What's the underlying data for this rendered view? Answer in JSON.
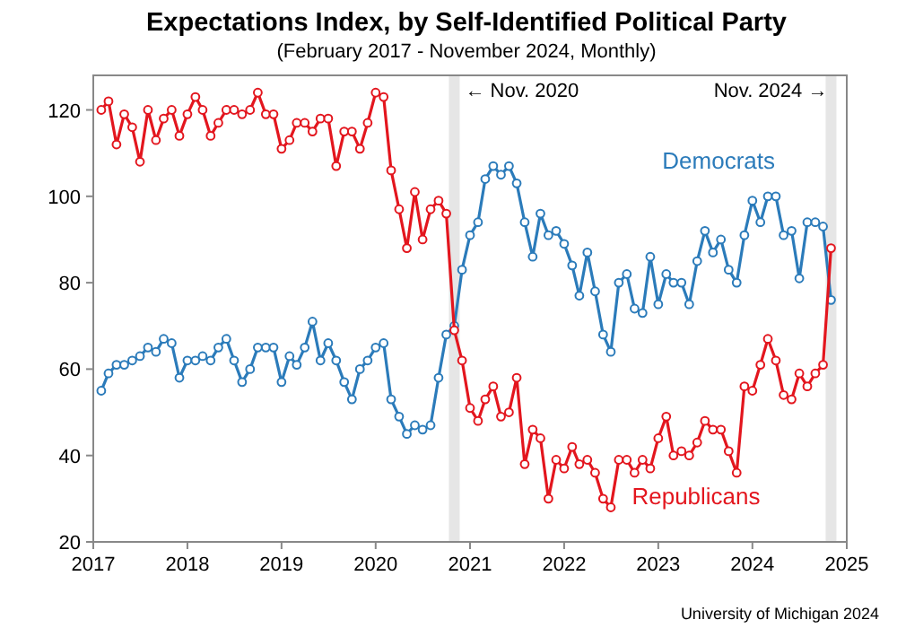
{
  "chart_data": {
    "type": "line",
    "title": "Expectations Index, by Self-Identified Political Party",
    "subtitle": "(February 2017 - November 2024, Monthly)",
    "annotations": [
      "University of Michigan 2024"
    ],
    "xlim": [
      "2017-01",
      "2025-01"
    ],
    "xticks": [
      {
        "value": "2017-01",
        "label": "2017"
      },
      {
        "value": "2018-01",
        "label": "2018"
      },
      {
        "value": "2019-01",
        "label": "2019"
      },
      {
        "value": "2020-01",
        "label": "2020"
      },
      {
        "value": "2021-01",
        "label": "2021"
      },
      {
        "value": "2022-01",
        "label": "2022"
      },
      {
        "value": "2023-01",
        "label": "2023"
      },
      {
        "value": "2024-01",
        "label": "2024"
      },
      {
        "value": "2025-01",
        "label": "2025"
      }
    ],
    "ylim": [
      20,
      128
    ],
    "yticks": [
      20,
      40,
      60,
      80,
      100,
      120
    ],
    "grid": false,
    "legend": false,
    "marker": "circle",
    "line_style": "solid",
    "x": [
      "2017-02",
      "2017-03",
      "2017-04",
      "2017-05",
      "2017-06",
      "2017-07",
      "2017-08",
      "2017-09",
      "2017-10",
      "2017-11",
      "2017-12",
      "2018-01",
      "2018-02",
      "2018-03",
      "2018-04",
      "2018-05",
      "2018-06",
      "2018-07",
      "2018-08",
      "2018-09",
      "2018-10",
      "2018-11",
      "2018-12",
      "2019-01",
      "2019-02",
      "2019-03",
      "2019-04",
      "2019-05",
      "2019-06",
      "2019-07",
      "2019-08",
      "2019-09",
      "2019-10",
      "2019-11",
      "2019-12",
      "2020-01",
      "2020-02",
      "2020-03",
      "2020-04",
      "2020-05",
      "2020-06",
      "2020-07",
      "2020-08",
      "2020-09",
      "2020-10",
      "2020-11",
      "2020-12",
      "2021-01",
      "2021-02",
      "2021-03",
      "2021-04",
      "2021-05",
      "2021-06",
      "2021-07",
      "2021-08",
      "2021-09",
      "2021-10",
      "2021-11",
      "2021-12",
      "2022-01",
      "2022-02",
      "2022-03",
      "2022-04",
      "2022-05",
      "2022-06",
      "2022-07",
      "2022-08",
      "2022-09",
      "2022-10",
      "2022-11",
      "2022-12",
      "2023-01",
      "2023-02",
      "2023-03",
      "2023-04",
      "2023-05",
      "2023-06",
      "2023-07",
      "2023-08",
      "2023-09",
      "2023-10",
      "2023-11",
      "2023-12",
      "2024-01",
      "2024-02",
      "2024-03",
      "2024-04",
      "2024-05",
      "2024-06",
      "2024-07",
      "2024-08",
      "2024-09",
      "2024-10",
      "2024-11"
    ],
    "ref_lines": [
      {
        "axis": "x",
        "value": "2020-11",
        "label": "← Nov. 2020",
        "color": "#e6e6e6"
      },
      {
        "axis": "x",
        "value": "2024-11",
        "label": "Nov. 2024 →",
        "color": "#e6e6e6"
      }
    ],
    "series": [
      {
        "name": "Democrats",
        "color": "#2b7bba",
        "values": [
          55,
          59,
          61,
          61,
          62,
          63,
          65,
          64,
          67,
          66,
          58,
          62,
          62,
          63,
          62,
          65,
          67,
          62,
          57,
          60,
          65,
          65,
          65,
          57,
          63,
          61,
          65,
          71,
          62,
          66,
          62,
          57,
          53,
          60,
          62,
          65,
          66,
          53,
          49,
          45,
          47,
          46,
          47,
          58,
          68,
          70,
          83,
          91,
          94,
          104,
          107,
          105,
          107,
          103,
          94,
          86,
          96,
          91,
          92,
          89,
          84,
          77,
          87,
          78,
          68,
          64,
          80,
          82,
          74,
          73,
          86,
          75,
          82,
          80,
          80,
          75,
          85,
          92,
          87,
          90,
          83,
          80,
          91,
          99,
          94,
          100,
          100,
          91,
          92,
          81,
          94,
          94,
          93,
          76
        ]
      },
      {
        "name": "Republicans",
        "color": "#e3161e",
        "values": [
          120,
          122,
          112,
          119,
          116,
          108,
          120,
          113,
          118,
          120,
          114,
          119,
          123,
          120,
          114,
          117,
          120,
          120,
          119,
          120,
          124,
          119,
          119,
          111,
          113,
          117,
          117,
          115,
          118,
          118,
          107,
          115,
          115,
          111,
          117,
          124,
          123,
          106,
          97,
          88,
          101,
          90,
          97,
          99,
          96,
          69,
          62,
          51,
          48,
          53,
          56,
          49,
          50,
          58,
          38,
          46,
          44,
          30,
          39,
          37,
          42,
          38,
          39,
          36,
          30,
          28,
          39,
          39,
          36,
          39,
          37,
          44,
          49,
          40,
          41,
          40,
          43,
          48,
          46,
          46,
          41,
          36,
          56,
          55,
          61,
          67,
          62,
          54,
          53,
          59,
          56,
          59,
          61,
          88
        ]
      }
    ]
  }
}
